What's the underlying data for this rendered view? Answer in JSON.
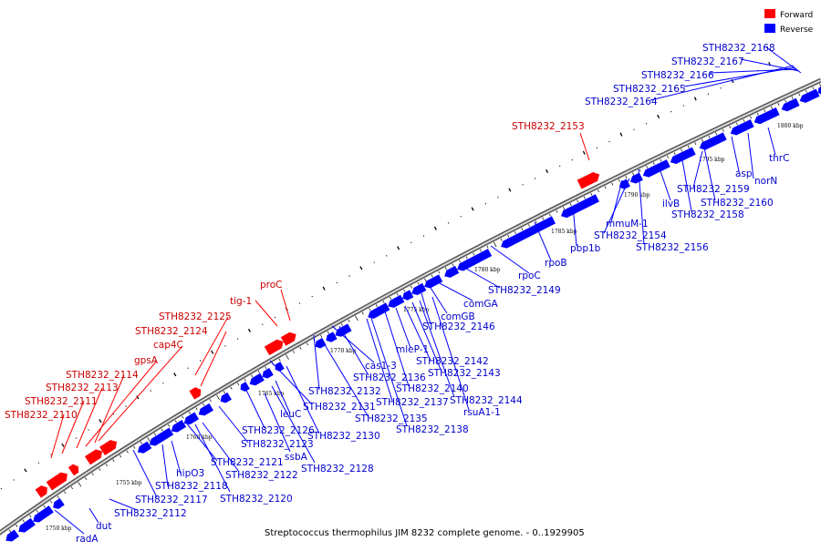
{
  "legend": {
    "forward": {
      "label": "Forward",
      "color": "#ff0000"
    },
    "reverse": {
      "label": "Reverse",
      "color": "#0000ff"
    }
  },
  "caption": "Streptococcus thermophilus JIM 8232 complete genome. - 0..1929905",
  "kbp_labels": [
    "1750 kbp",
    "1755 kbp",
    "1760 kbp",
    "1765 kbp",
    "1770 kbp",
    "1775 kbp",
    "1780 kbp",
    "1785 kbp",
    "1790 kbp",
    "1795 kbp",
    "1800 kbp"
  ],
  "forward_labels": [
    "STH8232_2110",
    "STH8232_2111",
    "STH8232_2113",
    "STH8232_2114",
    "gpsA",
    "cap4C",
    "STH8232_2124",
    "STH8232_2125",
    "tig-1",
    "proC",
    "STH8232_2153"
  ],
  "reverse_labels": [
    "radA",
    "dut",
    "STH8232_2112",
    "STH8232_2117",
    "STH8232_2118",
    "hipO3",
    "STH8232_2120",
    "STH8232_2121",
    "STH8232_2122",
    "STH8232_2123",
    "ssbA",
    "STH8232_2126",
    "STH8232_2128",
    "leuC",
    "STH8232_2130",
    "STH8232_2131",
    "STH8232_2132",
    "STH8232_2135",
    "cas1-3",
    "STH8232_2136",
    "STH8232_2137",
    "STH8232_2138",
    "STH8232_2140",
    "mleP-1",
    "STH8232_2142",
    "STH8232_2143",
    "STH8232_2144",
    "rsuA1-1",
    "STH8232_2146",
    "comGB",
    "comGA",
    "STH8232_2149",
    "rpoC",
    "rpoB",
    "pbp1b",
    "mmuM-1",
    "STH8232_2154",
    "STH8232_2156",
    "ilvB",
    "STH8232_2158",
    "STH8232_2159",
    "STH8232_2160",
    "asp",
    "norN",
    "thrC",
    "STH8232_2164",
    "STH8232_2165",
    "STH8232_2166",
    "STH8232_2167",
    "STH8232_2168"
  ]
}
